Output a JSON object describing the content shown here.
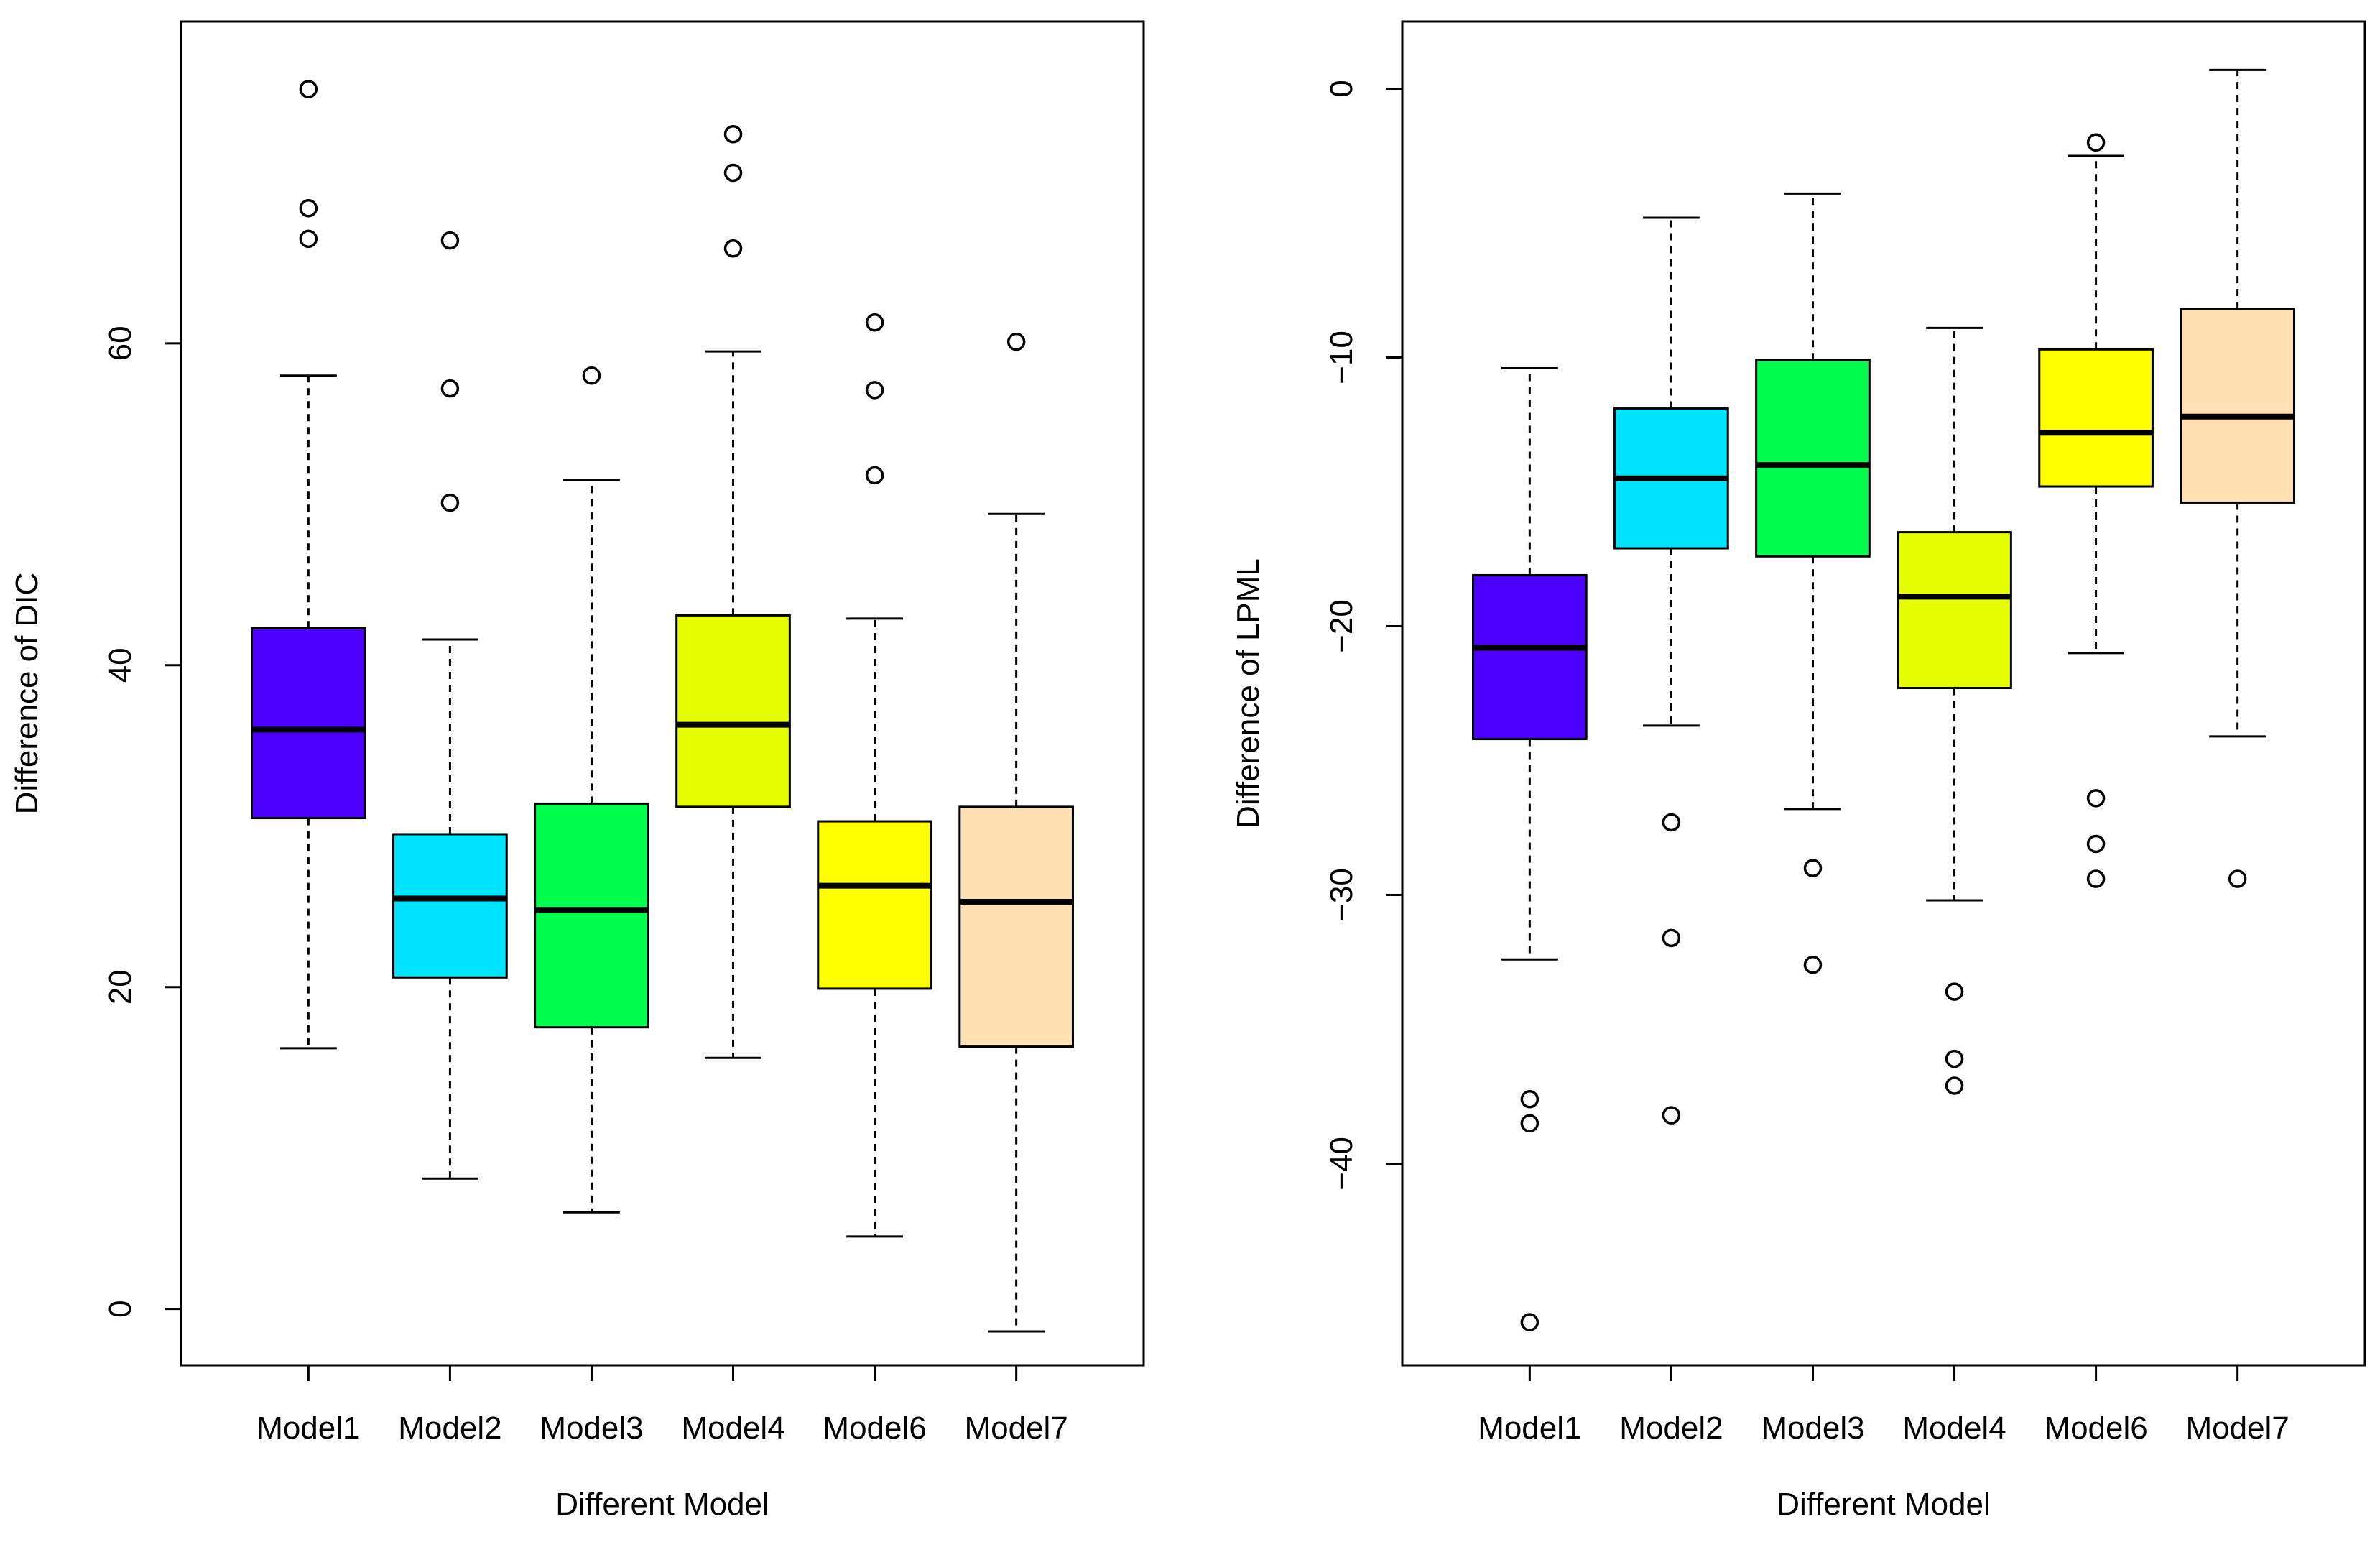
{
  "chart_data": [
    {
      "type": "boxplot",
      "xlabel": "Different Model",
      "ylabel": "Difference of DIC",
      "ylim": [
        -3.5,
        80
      ],
      "yticks": [
        0,
        20,
        40,
        60
      ],
      "ytick_labels": [
        "0",
        "20",
        "40",
        "60"
      ],
      "grid": false,
      "categories": [
        "Model1",
        "Model2",
        "Model3",
        "Model4",
        "Model6",
        "Model7"
      ],
      "colors": [
        "#4B00FF",
        "#00E5FF",
        "#00FF4D",
        "#E6FF00",
        "#FFFF00",
        "#FFE0B3"
      ],
      "boxes": [
        {
          "category": "Model1",
          "whisker_low": 16.2,
          "q1": 30.5,
          "median": 36.0,
          "q3": 42.3,
          "whisker_high": 58.0,
          "outliers": [
            66.5,
            68.4,
            75.8
          ]
        },
        {
          "category": "Model2",
          "whisker_low": 8.1,
          "q1": 20.6,
          "median": 25.5,
          "q3": 29.5,
          "whisker_high": 41.6,
          "outliers": [
            50.1,
            57.2,
            66.4
          ]
        },
        {
          "category": "Model3",
          "whisker_low": 6.0,
          "q1": 17.5,
          "median": 24.8,
          "q3": 31.4,
          "whisker_high": 51.5,
          "outliers": [
            58.0
          ]
        },
        {
          "category": "Model4",
          "whisker_low": 15.6,
          "q1": 31.2,
          "median": 36.3,
          "q3": 43.1,
          "whisker_high": 59.5,
          "outliers": [
            65.9,
            70.6,
            73.0
          ]
        },
        {
          "category": "Model6",
          "whisker_low": 4.5,
          "q1": 19.9,
          "median": 26.3,
          "q3": 30.3,
          "whisker_high": 42.9,
          "outliers": [
            51.8,
            57.1,
            61.3
          ]
        },
        {
          "category": "Model7",
          "whisker_low": -1.4,
          "q1": 16.3,
          "median": 25.3,
          "q3": 31.2,
          "whisker_high": 49.4,
          "outliers": [
            60.1
          ]
        }
      ]
    },
    {
      "type": "boxplot",
      "xlabel": "Different Model",
      "ylabel": "Difference of LPML",
      "ylim": [
        -47.5,
        2.5
      ],
      "yticks": [
        0,
        -10,
        -20,
        -30,
        -40
      ],
      "ytick_labels": [
        "0",
        "−10",
        "−20",
        "−30",
        "−40"
      ],
      "grid": false,
      "categories": [
        "Model1",
        "Model2",
        "Model3",
        "Model4",
        "Model6",
        "Model7"
      ],
      "colors": [
        "#4B00FF",
        "#00E5FF",
        "#00FF4D",
        "#E6FF00",
        "#FFFF00",
        "#FFE0B3"
      ],
      "boxes": [
        {
          "category": "Model1",
          "whisker_low": -32.4,
          "q1": -24.2,
          "median": -20.8,
          "q3": -18.1,
          "whisker_high": -10.4,
          "outliers": [
            -37.6,
            -38.5,
            -45.9
          ]
        },
        {
          "category": "Model2",
          "whisker_low": -23.7,
          "q1": -17.1,
          "median": -14.5,
          "q3": -11.9,
          "whisker_high": -4.8,
          "outliers": [
            -27.3,
            -31.6,
            -38.2
          ]
        },
        {
          "category": "Model3",
          "whisker_low": -26.8,
          "q1": -17.4,
          "median": -14.0,
          "q3": -10.1,
          "whisker_high": -3.9,
          "outliers": [
            -29.0,
            -32.6
          ]
        },
        {
          "category": "Model4",
          "whisker_low": -30.2,
          "q1": -22.3,
          "median": -18.9,
          "q3": -16.5,
          "whisker_high": -8.9,
          "outliers": [
            -33.6,
            -36.1,
            -37.1
          ]
        },
        {
          "category": "Model6",
          "whisker_low": -21.0,
          "q1": -14.8,
          "median": -12.8,
          "q3": -9.7,
          "whisker_high": -2.5,
          "outliers": [
            -2.0,
            -26.4,
            -28.1,
            -29.4
          ]
        },
        {
          "category": "Model7",
          "whisker_low": -24.1,
          "q1": -15.4,
          "median": -12.2,
          "q3": -8.2,
          "whisker_high": 0.7,
          "outliers": [
            -29.4
          ]
        }
      ]
    }
  ]
}
